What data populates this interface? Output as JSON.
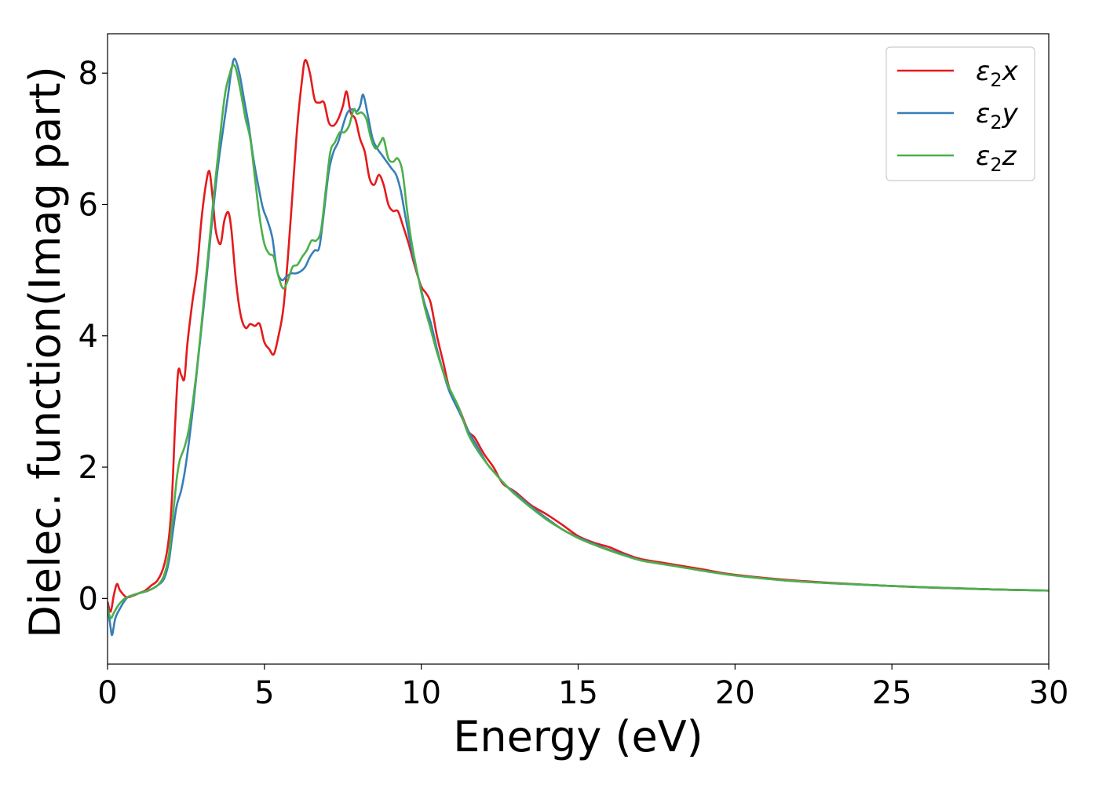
{
  "chart_data": {
    "type": "line",
    "xlabel": "Energy (eV)",
    "ylabel": "Dielec. function(Imag part)",
    "xlim": [
      0,
      30
    ],
    "ylim": [
      -1.0,
      8.6
    ],
    "xticks": [
      0,
      5,
      10,
      15,
      20,
      25,
      30
    ],
    "yticks": [
      0,
      2,
      4,
      6,
      8
    ],
    "grid": false,
    "legend_position": "top-right",
    "series": [
      {
        "name": "ε₂x",
        "legend": {
          "base": "ε",
          "sub": "2",
          "axis": "x"
        },
        "color": "#e41a1c",
        "points": [
          [
            0,
            -0.05
          ],
          [
            0.1,
            -0.2
          ],
          [
            0.2,
            0.05
          ],
          [
            0.3,
            0.22
          ],
          [
            0.4,
            0.12
          ],
          [
            0.6,
            0.02
          ],
          [
            0.8,
            0.04
          ],
          [
            1.0,
            0.08
          ],
          [
            1.2,
            0.12
          ],
          [
            1.4,
            0.2
          ],
          [
            1.6,
            0.28
          ],
          [
            1.8,
            0.5
          ],
          [
            1.95,
            0.9
          ],
          [
            2.05,
            1.5
          ],
          [
            2.15,
            2.6
          ],
          [
            2.25,
            3.45
          ],
          [
            2.35,
            3.4
          ],
          [
            2.45,
            3.35
          ],
          [
            2.55,
            3.9
          ],
          [
            2.7,
            4.5
          ],
          [
            2.85,
            5.0
          ],
          [
            3.0,
            5.8
          ],
          [
            3.15,
            6.35
          ],
          [
            3.25,
            6.5
          ],
          [
            3.35,
            6.1
          ],
          [
            3.45,
            5.6
          ],
          [
            3.6,
            5.4
          ],
          [
            3.72,
            5.75
          ],
          [
            3.85,
            5.88
          ],
          [
            3.95,
            5.6
          ],
          [
            4.1,
            4.8
          ],
          [
            4.25,
            4.3
          ],
          [
            4.4,
            4.12
          ],
          [
            4.55,
            4.18
          ],
          [
            4.7,
            4.15
          ],
          [
            4.85,
            4.18
          ],
          [
            5.0,
            3.9
          ],
          [
            5.15,
            3.8
          ],
          [
            5.3,
            3.72
          ],
          [
            5.45,
            4.0
          ],
          [
            5.6,
            4.4
          ],
          [
            5.75,
            5.2
          ],
          [
            5.9,
            6.2
          ],
          [
            6.05,
            7.2
          ],
          [
            6.2,
            7.9
          ],
          [
            6.3,
            8.2
          ],
          [
            6.45,
            8.0
          ],
          [
            6.6,
            7.6
          ],
          [
            6.75,
            7.55
          ],
          [
            6.9,
            7.55
          ],
          [
            7.05,
            7.25
          ],
          [
            7.2,
            7.2
          ],
          [
            7.35,
            7.3
          ],
          [
            7.5,
            7.5
          ],
          [
            7.62,
            7.72
          ],
          [
            7.75,
            7.4
          ],
          [
            7.9,
            7.3
          ],
          [
            8.05,
            7.0
          ],
          [
            8.2,
            6.8
          ],
          [
            8.35,
            6.4
          ],
          [
            8.5,
            6.3
          ],
          [
            8.65,
            6.45
          ],
          [
            8.8,
            6.3
          ],
          [
            8.95,
            6.0
          ],
          [
            9.1,
            5.9
          ],
          [
            9.25,
            5.9
          ],
          [
            9.4,
            5.7
          ],
          [
            9.6,
            5.4
          ],
          [
            9.8,
            5.05
          ],
          [
            10.0,
            4.75
          ],
          [
            10.15,
            4.65
          ],
          [
            10.3,
            4.5
          ],
          [
            10.5,
            4.0
          ],
          [
            10.7,
            3.6
          ],
          [
            10.9,
            3.2
          ],
          [
            11.2,
            2.9
          ],
          [
            11.5,
            2.55
          ],
          [
            11.7,
            2.45
          ],
          [
            12.0,
            2.2
          ],
          [
            12.3,
            2.0
          ],
          [
            12.6,
            1.75
          ],
          [
            13.0,
            1.62
          ],
          [
            13.5,
            1.42
          ],
          [
            14.0,
            1.28
          ],
          [
            14.5,
            1.12
          ],
          [
            15.0,
            0.95
          ],
          [
            15.5,
            0.85
          ],
          [
            16.0,
            0.78
          ],
          [
            16.5,
            0.68
          ],
          [
            17.0,
            0.6
          ],
          [
            18.0,
            0.52
          ],
          [
            19.0,
            0.44
          ],
          [
            20.0,
            0.36
          ],
          [
            22.0,
            0.27
          ],
          [
            25.0,
            0.19
          ],
          [
            28.0,
            0.14
          ],
          [
            30.0,
            0.12
          ]
        ]
      },
      {
        "name": "ε₂y",
        "legend": {
          "base": "ε",
          "sub": "2",
          "axis": "y"
        },
        "color": "#377eb8",
        "points": [
          [
            0,
            -0.1
          ],
          [
            0.1,
            -0.45
          ],
          [
            0.15,
            -0.55
          ],
          [
            0.25,
            -0.3
          ],
          [
            0.4,
            -0.15
          ],
          [
            0.6,
            0.0
          ],
          [
            0.8,
            0.05
          ],
          [
            1.0,
            0.08
          ],
          [
            1.3,
            0.12
          ],
          [
            1.6,
            0.2
          ],
          [
            1.8,
            0.3
          ],
          [
            1.95,
            0.55
          ],
          [
            2.05,
            0.9
          ],
          [
            2.2,
            1.4
          ],
          [
            2.35,
            1.65
          ],
          [
            2.5,
            2.05
          ],
          [
            2.7,
            2.8
          ],
          [
            2.9,
            3.7
          ],
          [
            3.1,
            4.6
          ],
          [
            3.3,
            5.6
          ],
          [
            3.5,
            6.5
          ],
          [
            3.7,
            7.2
          ],
          [
            3.85,
            7.7
          ],
          [
            3.95,
            8.05
          ],
          [
            4.05,
            8.22
          ],
          [
            4.2,
            8.0
          ],
          [
            4.35,
            7.6
          ],
          [
            4.5,
            7.2
          ],
          [
            4.65,
            6.7
          ],
          [
            4.8,
            6.3
          ],
          [
            4.95,
            5.95
          ],
          [
            5.1,
            5.75
          ],
          [
            5.25,
            5.5
          ],
          [
            5.4,
            5.0
          ],
          [
            5.55,
            4.85
          ],
          [
            5.7,
            4.9
          ],
          [
            5.85,
            4.95
          ],
          [
            6.0,
            4.95
          ],
          [
            6.15,
            4.98
          ],
          [
            6.3,
            5.05
          ],
          [
            6.45,
            5.2
          ],
          [
            6.6,
            5.3
          ],
          [
            6.75,
            5.35
          ],
          [
            6.9,
            5.9
          ],
          [
            7.05,
            6.5
          ],
          [
            7.2,
            6.8
          ],
          [
            7.35,
            6.95
          ],
          [
            7.5,
            7.2
          ],
          [
            7.65,
            7.4
          ],
          [
            7.8,
            7.45
          ],
          [
            7.95,
            7.42
          ],
          [
            8.05,
            7.5
          ],
          [
            8.15,
            7.67
          ],
          [
            8.3,
            7.35
          ],
          [
            8.45,
            7.0
          ],
          [
            8.6,
            6.85
          ],
          [
            8.75,
            6.75
          ],
          [
            8.9,
            6.65
          ],
          [
            9.05,
            6.55
          ],
          [
            9.2,
            6.45
          ],
          [
            9.35,
            6.2
          ],
          [
            9.5,
            5.8
          ],
          [
            9.7,
            5.3
          ],
          [
            9.9,
            4.9
          ],
          [
            10.1,
            4.5
          ],
          [
            10.3,
            4.2
          ],
          [
            10.5,
            3.8
          ],
          [
            10.7,
            3.45
          ],
          [
            10.9,
            3.15
          ],
          [
            11.2,
            2.85
          ],
          [
            11.5,
            2.55
          ],
          [
            11.8,
            2.3
          ],
          [
            12.1,
            2.05
          ],
          [
            12.4,
            1.88
          ],
          [
            12.7,
            1.72
          ],
          [
            13.0,
            1.6
          ],
          [
            13.5,
            1.4
          ],
          [
            14.0,
            1.22
          ],
          [
            14.5,
            1.05
          ],
          [
            15.0,
            0.93
          ],
          [
            15.5,
            0.83
          ],
          [
            16.0,
            0.74
          ],
          [
            16.5,
            0.66
          ],
          [
            17.0,
            0.58
          ],
          [
            18.0,
            0.5
          ],
          [
            19.0,
            0.42
          ],
          [
            20.0,
            0.35
          ],
          [
            22.0,
            0.26
          ],
          [
            25.0,
            0.19
          ],
          [
            28.0,
            0.14
          ],
          [
            30.0,
            0.12
          ]
        ]
      },
      {
        "name": "ε₂z",
        "legend": {
          "base": "ε",
          "sub": "2",
          "axis": "z"
        },
        "color": "#4daf4a",
        "points": [
          [
            0,
            -0.15
          ],
          [
            0.1,
            -0.3
          ],
          [
            0.2,
            -0.22
          ],
          [
            0.35,
            -0.1
          ],
          [
            0.55,
            0.0
          ],
          [
            0.8,
            0.05
          ],
          [
            1.0,
            0.08
          ],
          [
            1.3,
            0.12
          ],
          [
            1.6,
            0.2
          ],
          [
            1.8,
            0.35
          ],
          [
            1.95,
            0.65
          ],
          [
            2.05,
            1.1
          ],
          [
            2.2,
            1.8
          ],
          [
            2.3,
            2.1
          ],
          [
            2.45,
            2.3
          ],
          [
            2.6,
            2.6
          ],
          [
            2.8,
            3.3
          ],
          [
            3.0,
            4.2
          ],
          [
            3.2,
            5.2
          ],
          [
            3.4,
            6.2
          ],
          [
            3.6,
            7.1
          ],
          [
            3.75,
            7.7
          ],
          [
            3.9,
            8.0
          ],
          [
            4.0,
            8.12
          ],
          [
            4.1,
            8.05
          ],
          [
            4.25,
            7.7
          ],
          [
            4.4,
            7.3
          ],
          [
            4.55,
            7.0
          ],
          [
            4.7,
            6.4
          ],
          [
            4.85,
            5.8
          ],
          [
            5.0,
            5.4
          ],
          [
            5.15,
            5.25
          ],
          [
            5.3,
            5.2
          ],
          [
            5.45,
            4.9
          ],
          [
            5.6,
            4.72
          ],
          [
            5.75,
            4.85
          ],
          [
            5.9,
            5.05
          ],
          [
            6.05,
            5.08
          ],
          [
            6.2,
            5.2
          ],
          [
            6.35,
            5.3
          ],
          [
            6.5,
            5.45
          ],
          [
            6.65,
            5.45
          ],
          [
            6.8,
            5.6
          ],
          [
            6.95,
            6.2
          ],
          [
            7.1,
            6.8
          ],
          [
            7.25,
            6.95
          ],
          [
            7.4,
            7.1
          ],
          [
            7.55,
            7.1
          ],
          [
            7.7,
            7.2
          ],
          [
            7.85,
            7.45
          ],
          [
            7.95,
            7.38
          ],
          [
            8.1,
            7.4
          ],
          [
            8.25,
            7.3
          ],
          [
            8.4,
            7.0
          ],
          [
            8.55,
            6.85
          ],
          [
            8.7,
            6.95
          ],
          [
            8.8,
            7.0
          ],
          [
            8.95,
            6.7
          ],
          [
            9.1,
            6.65
          ],
          [
            9.25,
            6.7
          ],
          [
            9.4,
            6.5
          ],
          [
            9.55,
            5.9
          ],
          [
            9.7,
            5.4
          ],
          [
            9.9,
            4.9
          ],
          [
            10.1,
            4.45
          ],
          [
            10.3,
            4.1
          ],
          [
            10.5,
            3.75
          ],
          [
            10.7,
            3.45
          ],
          [
            10.9,
            3.2
          ],
          [
            11.2,
            2.9
          ],
          [
            11.5,
            2.5
          ],
          [
            11.8,
            2.25
          ],
          [
            12.1,
            2.05
          ],
          [
            12.4,
            1.88
          ],
          [
            12.7,
            1.72
          ],
          [
            13.0,
            1.58
          ],
          [
            13.5,
            1.38
          ],
          [
            14.0,
            1.2
          ],
          [
            14.5,
            1.05
          ],
          [
            15.0,
            0.92
          ],
          [
            15.5,
            0.82
          ],
          [
            16.0,
            0.73
          ],
          [
            16.5,
            0.65
          ],
          [
            17.0,
            0.58
          ],
          [
            18.0,
            0.5
          ],
          [
            19.0,
            0.42
          ],
          [
            20.0,
            0.35
          ],
          [
            22.0,
            0.26
          ],
          [
            25.0,
            0.19
          ],
          [
            28.0,
            0.14
          ],
          [
            30.0,
            0.12
          ]
        ]
      }
    ]
  }
}
